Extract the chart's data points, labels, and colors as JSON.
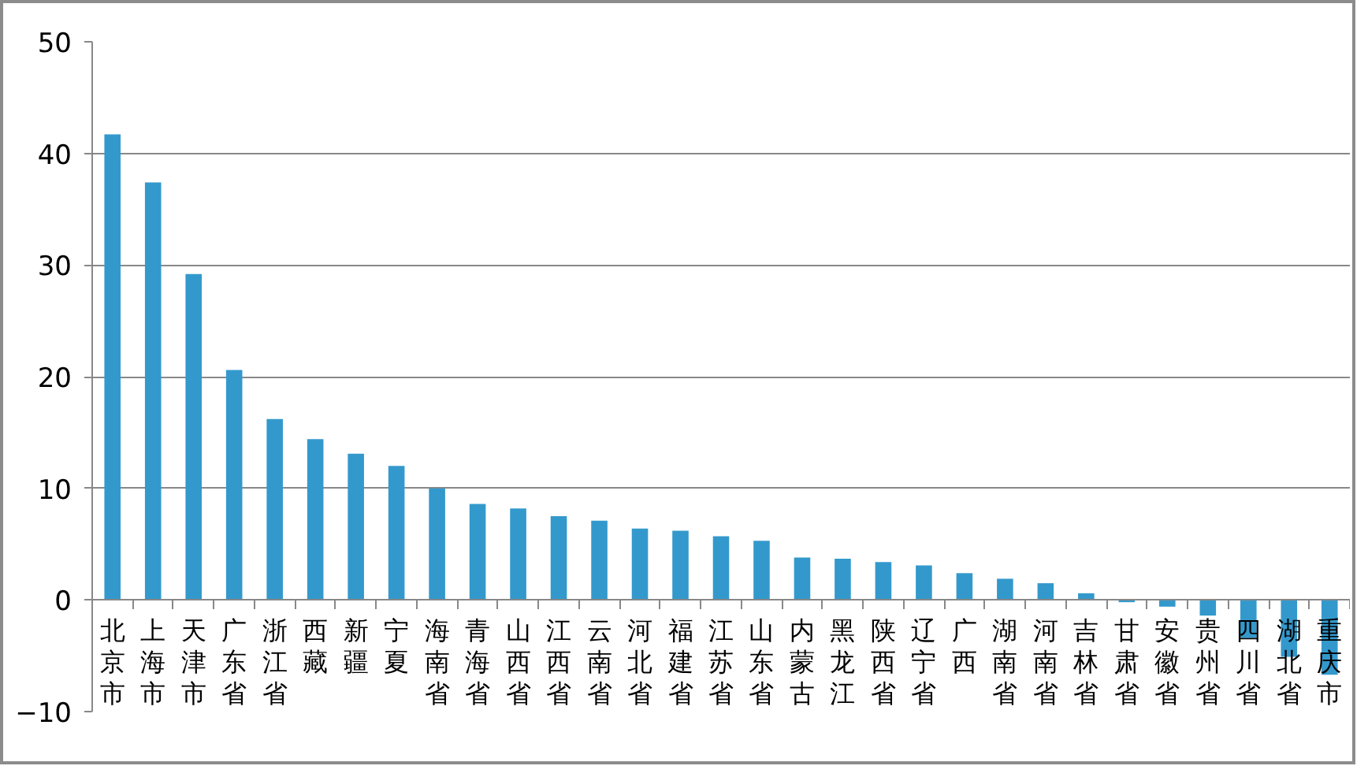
{
  "chart_data": {
    "type": "bar",
    "categories": [
      "北京市",
      "上海市",
      "天津市",
      "广东省",
      "浙江省",
      "西藏",
      "新疆",
      "宁夏",
      "海南省",
      "青海省",
      "山西省",
      "江西省",
      "云南省",
      "河北省",
      "福建省",
      "江苏省",
      "山东省",
      "内蒙古",
      "黑龙江",
      "陕西省",
      "辽宁省",
      "广西",
      "湖南省",
      "河南省",
      "吉林省",
      "甘肃省",
      "安徽省",
      "贵州省",
      "四川省",
      "湖北省",
      "重庆市"
    ],
    "values": [
      41.7,
      37.4,
      29.2,
      20.6,
      16.2,
      14.4,
      13.1,
      12.0,
      10.0,
      8.6,
      8.2,
      7.5,
      7.1,
      6.4,
      6.2,
      5.7,
      5.3,
      3.8,
      3.7,
      3.4,
      3.1,
      2.4,
      1.9,
      1.5,
      0.6,
      -0.2,
      -0.6,
      -1.4,
      -3.4,
      -5.1,
      -6.7
    ],
    "color": "#3399cc",
    "ylim": [
      -10,
      50
    ],
    "yticks": [
      -10,
      0,
      10,
      20,
      30,
      40,
      50
    ],
    "grid": "y"
  }
}
